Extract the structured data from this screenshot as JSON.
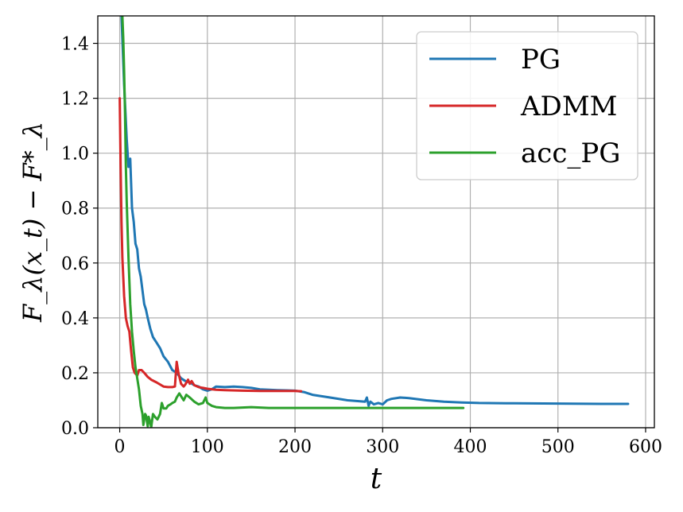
{
  "chart_data": {
    "type": "line",
    "xlabel": "t",
    "ylabel": "F_λ(x_t) − F*_λ",
    "xlim": [
      -25,
      610
    ],
    "ylim": [
      0,
      1.5
    ],
    "x_ticks": [
      0,
      100,
      200,
      300,
      400,
      500,
      600
    ],
    "x_tick_labels": [
      "0",
      "100",
      "200",
      "300",
      "400",
      "500",
      "600"
    ],
    "y_ticks": [
      0.0,
      0.2,
      0.4,
      0.6,
      0.8,
      1.0,
      1.2,
      1.4
    ],
    "y_tick_labels": [
      "0.0",
      "0.2",
      "0.4",
      "0.6",
      "0.8",
      "1.0",
      "1.2",
      "1.4"
    ],
    "grid": true,
    "legend_position": "top-right",
    "series": [
      {
        "name": "PG",
        "color": "#1f77b4",
        "x": [
          2,
          5,
          8,
          10,
          12,
          14,
          16,
          18,
          20,
          22,
          24,
          26,
          28,
          30,
          32,
          35,
          38,
          42,
          46,
          50,
          55,
          60,
          65,
          70,
          75,
          80,
          85,
          90,
          95,
          100,
          105,
          110,
          120,
          130,
          140,
          150,
          160,
          170,
          180,
          190,
          200,
          210,
          220,
          240,
          260,
          280,
          282,
          284,
          286,
          290,
          295,
          300,
          305,
          310,
          320,
          330,
          350,
          370,
          390,
          410,
          450,
          500,
          550,
          580
        ],
        "y": [
          1.5,
          1.25,
          1.05,
          0.95,
          0.98,
          0.8,
          0.75,
          0.67,
          0.65,
          0.58,
          0.55,
          0.5,
          0.45,
          0.43,
          0.4,
          0.36,
          0.33,
          0.31,
          0.29,
          0.26,
          0.24,
          0.21,
          0.2,
          0.18,
          0.17,
          0.165,
          0.155,
          0.15,
          0.14,
          0.135,
          0.14,
          0.15,
          0.148,
          0.15,
          0.148,
          0.145,
          0.14,
          0.138,
          0.137,
          0.136,
          0.135,
          0.13,
          0.12,
          0.11,
          0.1,
          0.095,
          0.11,
          0.08,
          0.095,
          0.085,
          0.09,
          0.085,
          0.1,
          0.105,
          0.11,
          0.108,
          0.1,
          0.095,
          0.092,
          0.09,
          0.089,
          0.088,
          0.087,
          0.087
        ]
      },
      {
        "name": "ADMM",
        "color": "#d62728",
        "x": [
          0,
          1,
          2,
          3,
          4,
          5,
          7,
          9,
          11,
          13,
          15,
          17,
          20,
          22,
          25,
          28,
          32,
          36,
          42,
          50,
          55,
          60,
          63,
          65,
          67,
          70,
          73,
          75,
          78,
          80,
          82,
          85,
          90,
          95,
          100,
          110,
          120,
          140,
          160,
          180,
          200,
          207
        ],
        "y": [
          1.2,
          0.95,
          0.75,
          0.62,
          0.55,
          0.48,
          0.4,
          0.37,
          0.35,
          0.28,
          0.22,
          0.2,
          0.19,
          0.21,
          0.21,
          0.2,
          0.185,
          0.175,
          0.165,
          0.15,
          0.148,
          0.148,
          0.15,
          0.24,
          0.2,
          0.16,
          0.15,
          0.158,
          0.175,
          0.16,
          0.17,
          0.155,
          0.148,
          0.145,
          0.142,
          0.138,
          0.137,
          0.135,
          0.134,
          0.134,
          0.134,
          0.133
        ]
      },
      {
        "name": "acc_PG",
        "color": "#2ca02c",
        "x": [
          3,
          4,
          5,
          6,
          7,
          8,
          10,
          12,
          14,
          16,
          18,
          20,
          22,
          24,
          26,
          27,
          29,
          30,
          32,
          33,
          34,
          36,
          38,
          40,
          43,
          46,
          48,
          50,
          53,
          55,
          58,
          60,
          63,
          65,
          68,
          70,
          73,
          76,
          80,
          85,
          90,
          95,
          98,
          100,
          105,
          110,
          120,
          130,
          150,
          170,
          200,
          250,
          300,
          350,
          392
        ],
        "y": [
          1.5,
          1.42,
          1.3,
          1.15,
          0.95,
          0.82,
          0.62,
          0.45,
          0.35,
          0.28,
          0.22,
          0.18,
          0.14,
          0.08,
          0.05,
          0.01,
          0.05,
          0.045,
          0.005,
          0.04,
          0.03,
          0.002,
          0.05,
          0.04,
          0.03,
          0.05,
          0.09,
          0.07,
          0.07,
          0.08,
          0.085,
          0.09,
          0.095,
          0.11,
          0.125,
          0.115,
          0.1,
          0.12,
          0.11,
          0.095,
          0.085,
          0.09,
          0.11,
          0.09,
          0.08,
          0.075,
          0.072,
          0.072,
          0.075,
          0.072,
          0.072,
          0.072,
          0.072,
          0.072,
          0.072
        ]
      }
    ]
  }
}
